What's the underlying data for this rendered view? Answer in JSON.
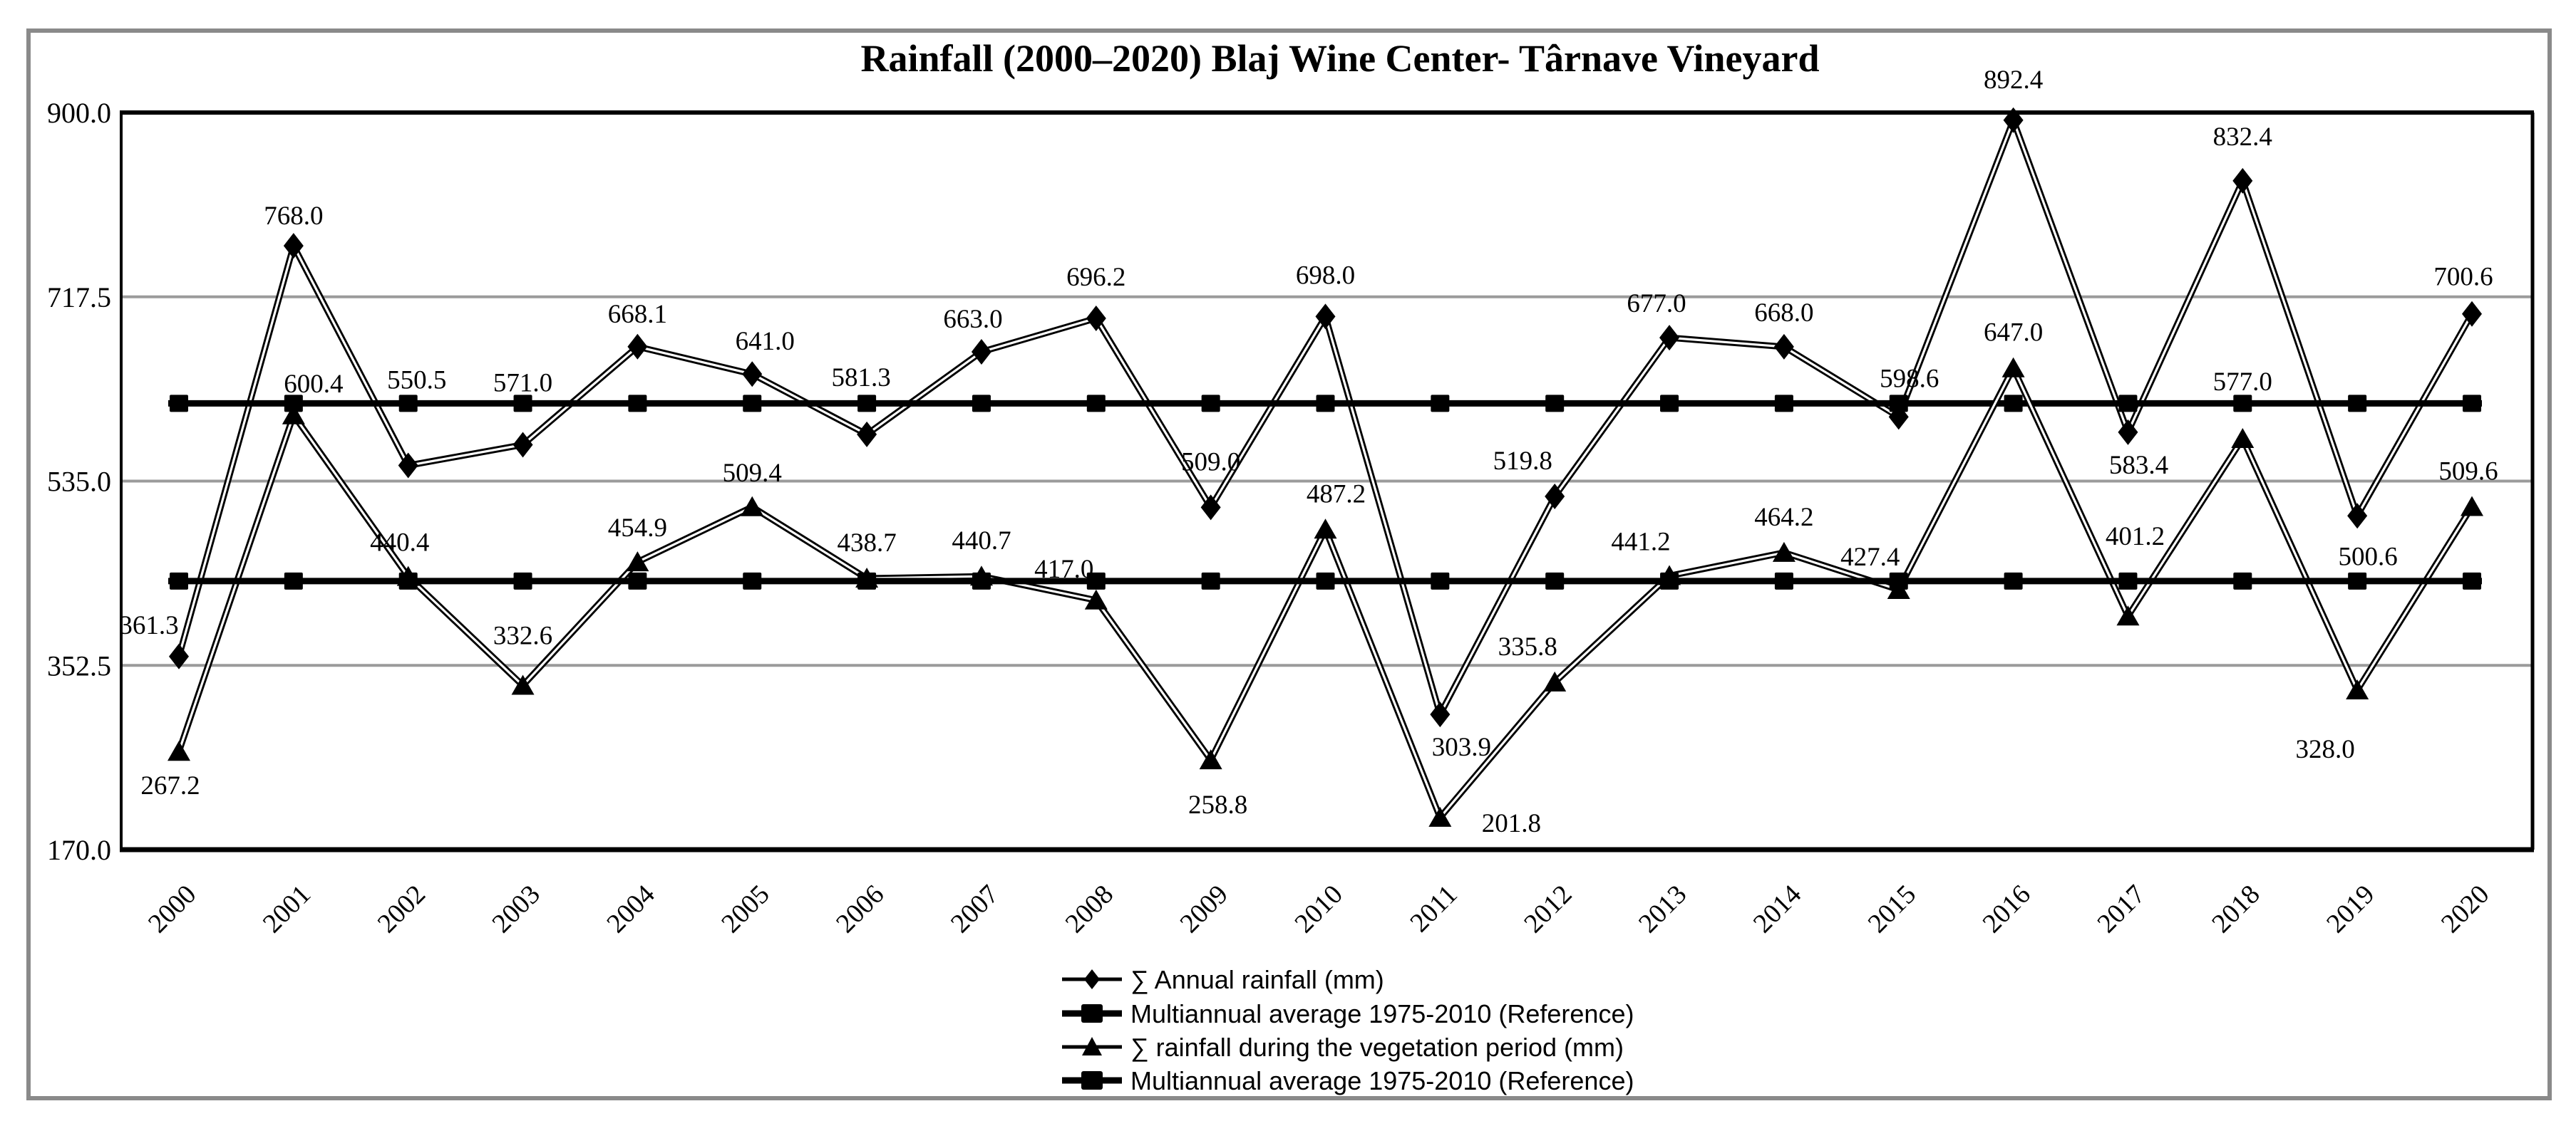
{
  "title": "Rainfall (2000–2020) Blaj Wine Center- Târnave Vineyard",
  "chart_data": {
    "type": "line",
    "x": [
      "2000",
      "2001",
      "2002",
      "2003",
      "2004",
      "2005",
      "2006",
      "2007",
      "2008",
      "2009",
      "2010",
      "2011",
      "2012",
      "2013",
      "2014",
      "2015",
      "2016",
      "2017",
      "2018",
      "2019",
      "2020"
    ],
    "series": [
      {
        "name": "∑ Annual rainfall (mm)",
        "key": "annual",
        "marker": "diamond",
        "line_style": "double",
        "values": [
          361.3,
          768.0,
          550.5,
          571.0,
          668.1,
          641.0,
          581.3,
          663.0,
          696.2,
          509.0,
          698.0,
          303.9,
          519.8,
          677.0,
          668.0,
          598.6,
          892.4,
          583.4,
          832.4,
          500.6,
          700.6
        ]
      },
      {
        "name": "Multiannual average 1975-2010 (Reference)",
        "key": "annual_reference",
        "marker": "square",
        "line_style": "thick",
        "constant": 612.0
      },
      {
        "name": "∑ rainfall during the vegetation period (mm)",
        "key": "vegetation",
        "marker": "triangle",
        "line_style": "double",
        "values": [
          267.2,
          600.4,
          440.4,
          332.6,
          454.9,
          509.4,
          438.7,
          440.7,
          417.0,
          258.8,
          487.2,
          201.8,
          335.8,
          441.2,
          464.2,
          427.4,
          647.0,
          401.2,
          577.0,
          328.0,
          509.6
        ]
      },
      {
        "name": "Multiannual average 1975-2010 (Reference)",
        "key": "vegetation_reference",
        "marker": "square",
        "line_style": "thick",
        "constant": 436.0
      }
    ],
    "y_ticks": [
      "900.0",
      "717.5",
      "535.0",
      "352.5",
      "170.0"
    ],
    "ylim": [
      170,
      900
    ],
    "grid": "horizontal-gray",
    "legend_position": "bottom-center",
    "data_label_format": "one-decimal",
    "colors": {
      "line": "#000000",
      "grid": "#9b9b9b",
      "frame": "#8a8a8a",
      "background": "#ffffff"
    }
  },
  "legend": {
    "items": [
      {
        "label": "∑ Annual rainfall (mm)",
        "marker": "diamond"
      },
      {
        "label": "Multiannual average 1975-2010 (Reference)",
        "marker": "square"
      },
      {
        "label": "∑ rainfall during the vegetation period (mm)",
        "marker": "triangle"
      },
      {
        "label": "Multiannual average 1975-2010 (Reference)",
        "marker": "square"
      }
    ]
  },
  "layout_hints": {
    "label_offsets": {
      "annual": [
        [
          -42,
          -32
        ],
        [
          0,
          -30
        ],
        [
          12,
          -108
        ],
        [
          0,
          -75
        ],
        [
          0,
          -34
        ],
        [
          18,
          -34
        ],
        [
          -8,
          -68
        ],
        [
          -12,
          -34
        ],
        [
          0,
          -46
        ],
        [
          0,
          -52
        ],
        [
          0,
          -46
        ],
        [
          30,
          58
        ],
        [
          -45,
          -38
        ],
        [
          -18,
          -36
        ],
        [
          0,
          -36
        ],
        [
          15,
          -42
        ],
        [
          0,
          -45
        ],
        [
          15,
          58
        ],
        [
          0,
          -50
        ],
        [
          15,
          69
        ],
        [
          -12,
          -40
        ]
      ],
      "vegetation": [
        [
          -12,
          60
        ],
        [
          28,
          -32
        ],
        [
          -12,
          -36
        ],
        [
          0,
          -58
        ],
        [
          0,
          -36
        ],
        [
          0,
          -36
        ],
        [
          0,
          -38
        ],
        [
          0,
          -38
        ],
        [
          -45,
          -32
        ],
        [
          10,
          75
        ],
        [
          15,
          -38
        ],
        [
          100,
          20
        ],
        [
          -38,
          -38
        ],
        [
          -40,
          -36
        ],
        [
          0,
          -38
        ],
        [
          -40,
          -34
        ],
        [
          0,
          -38
        ],
        [
          10,
          -100
        ],
        [
          0,
          -68
        ],
        [
          -45,
          95
        ],
        [
          -5,
          -38
        ]
      ]
    }
  }
}
